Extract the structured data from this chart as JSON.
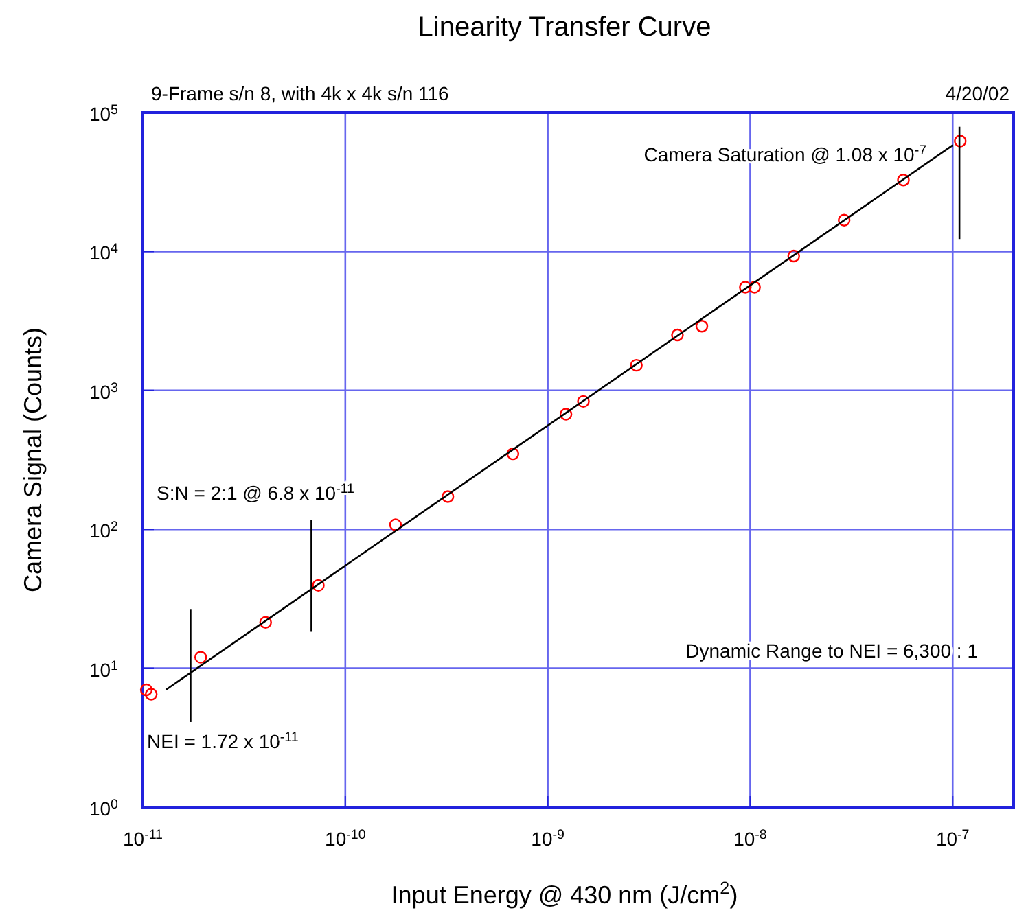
{
  "chart_data": {
    "type": "scatter",
    "title": "Linearity Transfer Curve",
    "subtitle": "9-Frame s/n 8, with 4k x 4k s/n 116",
    "xlabel": "Input Energy @ 430 nm (J/cm$^{2}$)",
    "ylabel": "Camera Signal (Counts)",
    "log": "xy",
    "grid": true,
    "xlim": [
      1e-11,
      2e-07
    ],
    "ylim": [
      1,
      100000
    ],
    "xticks": [
      {
        "value": 1e-11,
        "label": "10$^{-11}$"
      },
      {
        "value": 1e-10,
        "label": "10$^{-10}$"
      },
      {
        "value": 1e-09,
        "label": "10$^{-9}$"
      },
      {
        "value": 1e-08,
        "label": "10$^{-8}$"
      },
      {
        "value": 1e-07,
        "label": "10$^{-7}$"
      }
    ],
    "yticks": [
      {
        "value": 1,
        "label": "10$^{0}$"
      },
      {
        "value": 10,
        "label": "10$^{1}$"
      },
      {
        "value": 100,
        "label": "10$^{2}$"
      },
      {
        "value": 1000,
        "label": "10$^{3}$"
      },
      {
        "value": 10000,
        "label": "10$^{4}$"
      },
      {
        "value": 100000,
        "label": "10$^{5}$"
      }
    ],
    "series": [
      {
        "marker": "circle",
        "color": "#ff0000",
        "x": [
          1.04e-11,
          1.1e-11,
          1.93e-11,
          4.04e-11,
          7.36e-11,
          1.77e-10,
          3.21e-10,
          6.73e-10,
          1.23e-09,
          1.5e-09,
          2.74e-09,
          4.37e-09,
          5.77e-09,
          9.46e-09,
          1.05e-08,
          1.64e-08,
          2.91e-08,
          5.71e-08,
          1.09e-07
        ],
        "values": [
          7,
          6.5,
          12,
          21.4,
          39.5,
          108,
          172,
          350,
          674,
          833,
          1518,
          2506,
          2900,
          5530,
          5530,
          9270,
          16800,
          32700,
          62400
        ]
      },
      {
        "type": "line",
        "marker": "none",
        "color": "#000000",
        "x": [
          1.3e-11,
          1e-07
        ],
        "values": [
          7,
          58200
        ]
      },
      {
        "type": "line",
        "marker": "none",
        "color": "#000000",
        "x": [
          1.72e-11,
          1.72e-11
        ],
        "values": [
          4.1,
          26.7
        ]
      },
      {
        "type": "line",
        "marker": "none",
        "color": "#000000",
        "x": [
          6.8e-11,
          6.8e-11
        ],
        "values": [
          18.3,
          117
        ]
      },
      {
        "type": "line",
        "marker": "none",
        "color": "#000000",
        "x": [
          1.08e-07,
          1.08e-07
        ],
        "values": [
          12300,
          79000
        ]
      }
    ],
    "annotations": [
      "NEI = 1.72 x 10$^{-11}$",
      "S:N = 2:1 @ 6.8 x 10$^{-11}$",
      {
        "text": "Camera Saturation @ 1.08 x 10$^{-7}$",
        "x": 1.08e-07,
        "y": 62400
      },
      "Dynamic Range to NEI = 6,300 : 1",
      "4/20/02"
    ]
  }
}
